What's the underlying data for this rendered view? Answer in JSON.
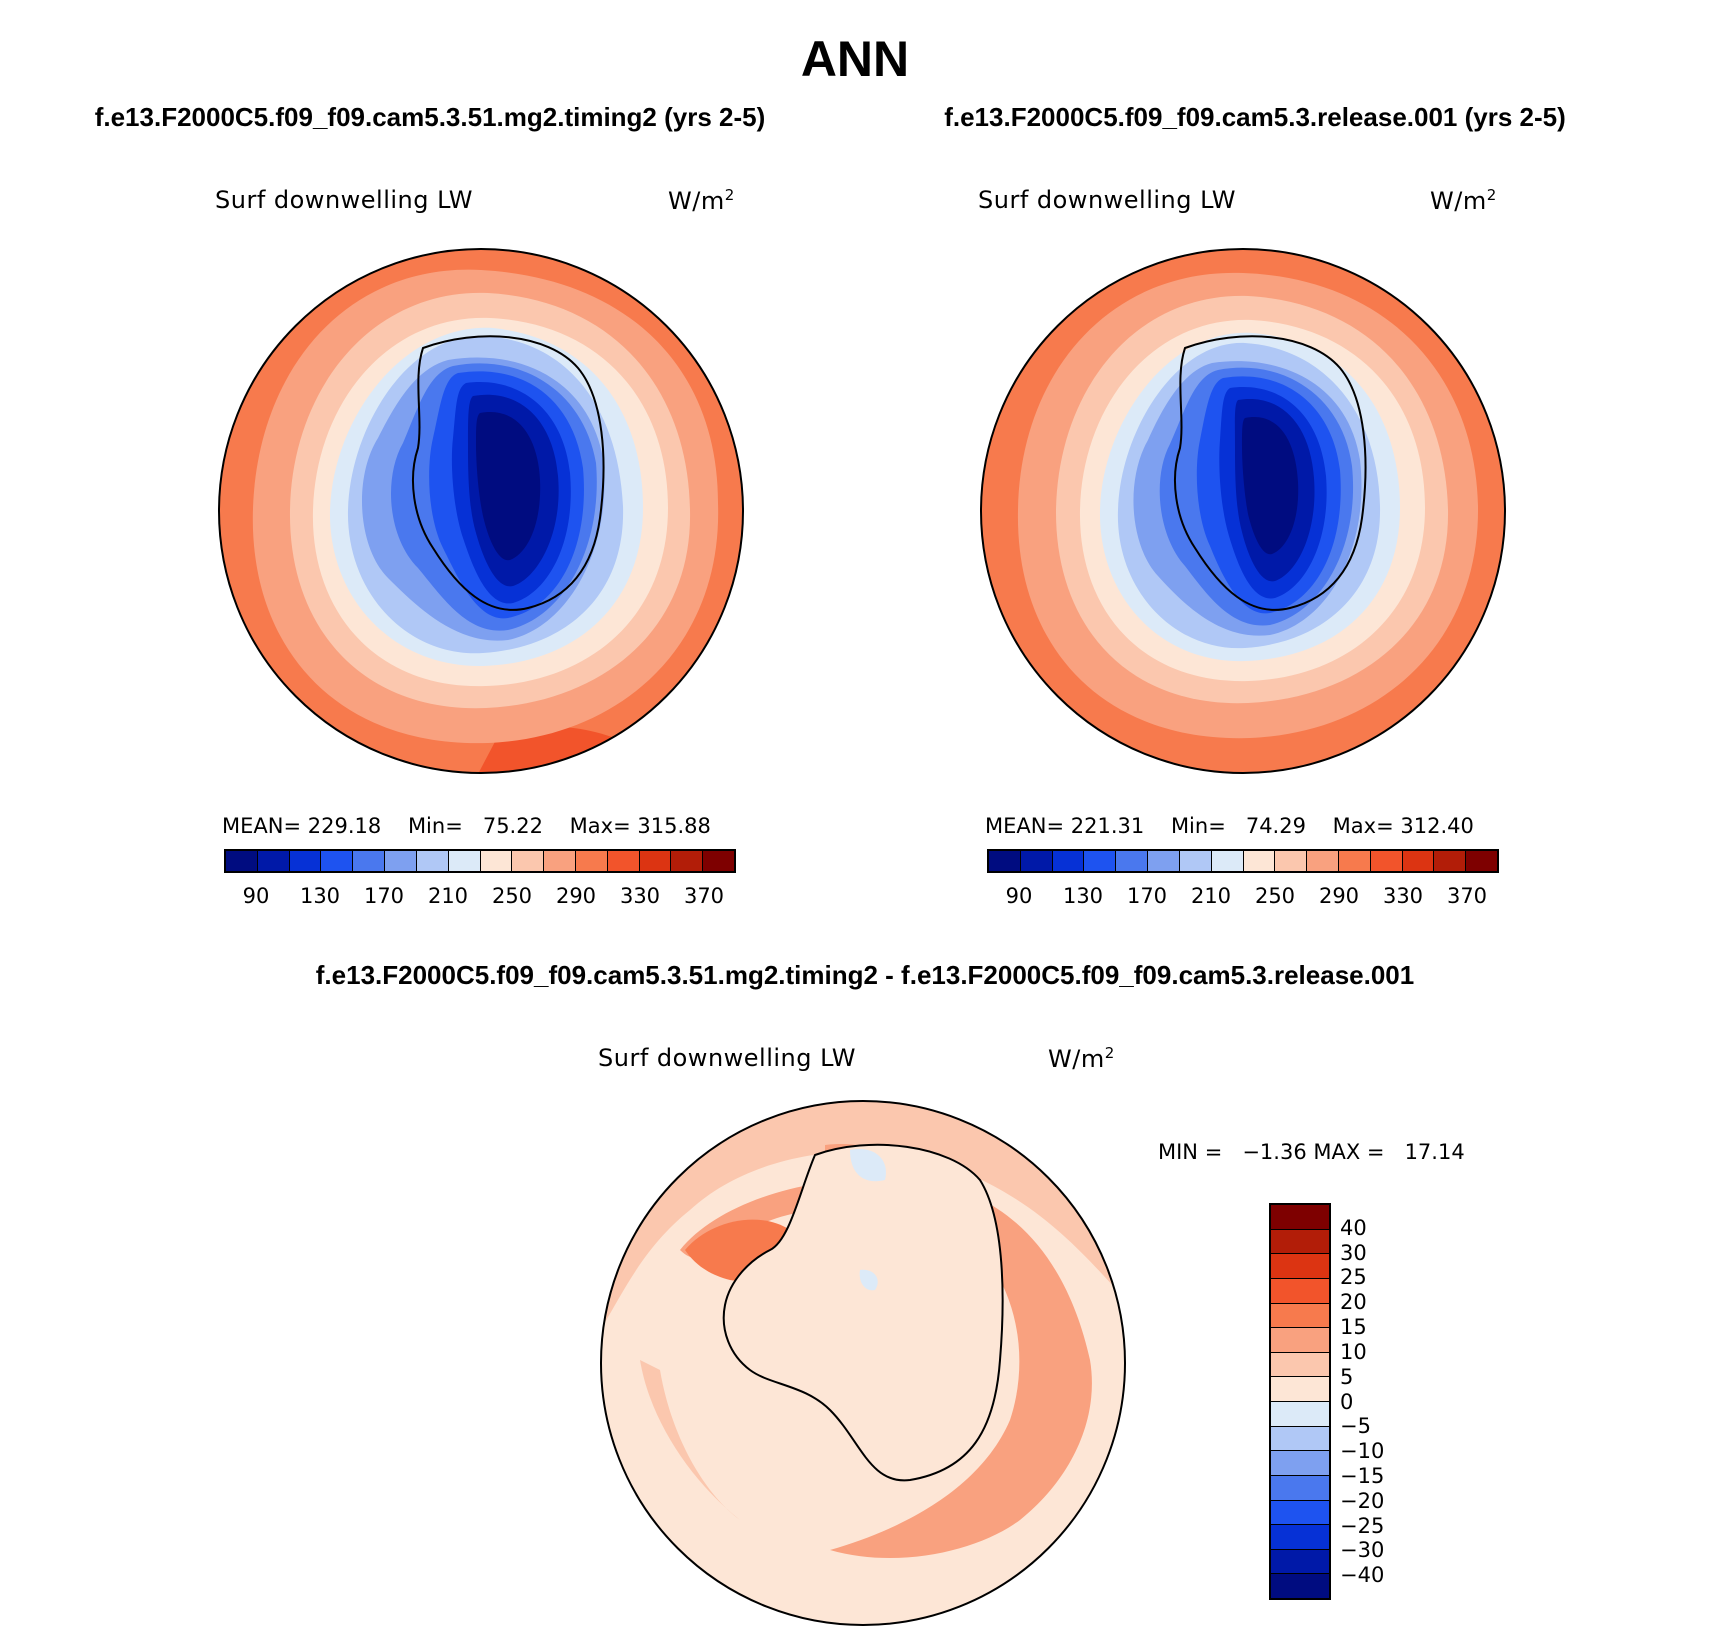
{
  "title": "ANN",
  "panels": [
    {
      "case_title": "f.e13.F2000C5.f09_f09.cam5.3.51.mg2.timing2 (yrs 2-5)",
      "variable": "Surf downwelling LW",
      "units": "W/m",
      "units_sup": "2",
      "stats": {
        "mean_label": "MEAN=",
        "mean": "229.18",
        "min_label": "Min=",
        "min": "75.22",
        "max_label": "Max=",
        "max": "315.88"
      },
      "colorbar_ticks": [
        "90",
        "130",
        "170",
        "210",
        "250",
        "290",
        "330",
        "370"
      ],
      "colorbar_colors": [
        "#000c80",
        "#0019a8",
        "#0631d6",
        "#1e53f0",
        "#4a78ee",
        "#7ea0f0",
        "#b0c8f6",
        "#dceaf8",
        "#fde6d6",
        "#fbc7ae",
        "#f9a17f",
        "#f77a4d",
        "#f2542b",
        "#dc3412",
        "#b21d08",
        "#7e0000"
      ]
    },
    {
      "case_title": "f.e13.F2000C5.f09_f09.cam5.3.release.001 (yrs 2-5)",
      "variable": "Surf downwelling LW",
      "units": "W/m",
      "units_sup": "2",
      "stats": {
        "mean_label": "MEAN=",
        "mean": "221.31",
        "min_label": "Min=",
        "min": "74.29",
        "max_label": "Max=",
        "max": "312.40"
      },
      "colorbar_ticks": [
        "90",
        "130",
        "170",
        "210",
        "250",
        "290",
        "330",
        "370"
      ],
      "colorbar_colors": [
        "#000c80",
        "#0019a8",
        "#0631d6",
        "#1e53f0",
        "#4a78ee",
        "#7ea0f0",
        "#b0c8f6",
        "#dceaf8",
        "#fde6d6",
        "#fbc7ae",
        "#f9a17f",
        "#f77a4d",
        "#f2542b",
        "#dc3412",
        "#b21d08",
        "#7e0000"
      ]
    }
  ],
  "diff_panel": {
    "case_title": "f.e13.F2000C5.f09_f09.cam5.3.51.mg2.timing2 - f.e13.F2000C5.f09_f09.cam5.3.release.001",
    "variable": "Surf downwelling LW",
    "units": "W/m",
    "units_sup": "2",
    "stats": {
      "min_label": "MIN =",
      "min": "−1.36",
      "max_label": "MAX =",
      "max": "17.14"
    },
    "colorbar_ticks": [
      "40",
      "30",
      "25",
      "20",
      "15",
      "10",
      "5",
      "0",
      "−5",
      "−10",
      "−15",
      "−20",
      "−25",
      "−30",
      "−40"
    ],
    "colorbar_colors": [
      "#7e0000",
      "#b21d08",
      "#dc3412",
      "#f2542b",
      "#f77a4d",
      "#f9a17f",
      "#fbc7ae",
      "#fde6d6",
      "#dceaf8",
      "#b0c8f6",
      "#7ea0f0",
      "#4a78ee",
      "#1e53f0",
      "#0631d6",
      "#0019a8",
      "#000c80"
    ]
  }
}
